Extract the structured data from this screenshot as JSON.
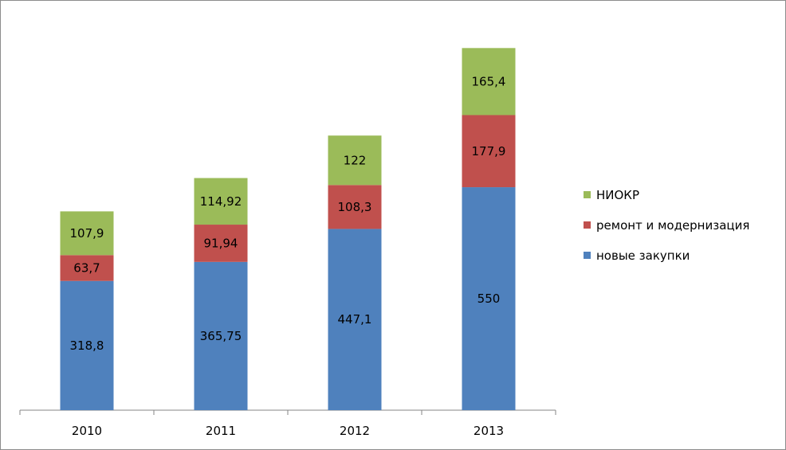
{
  "chart_data": {
    "type": "bar",
    "stacked": true,
    "categories": [
      "2010",
      "2011",
      "2012",
      "2013"
    ],
    "series": [
      {
        "name": "новые закупки",
        "values": [
          318.8,
          365.75,
          447.1,
          550
        ],
        "labels": [
          "318,8",
          "365,75",
          "447,1",
          "550"
        ],
        "color": "#4f81bd"
      },
      {
        "name": "ремонт и модернизация",
        "values": [
          63.7,
          91.94,
          108.3,
          177.9
        ],
        "labels": [
          "63,7",
          "91,94",
          "108,3",
          "177,9"
        ],
        "color": "#c0504d"
      },
      {
        "name": "НИОКР",
        "values": [
          107.9,
          114.92,
          122,
          165.4
        ],
        "labels": [
          "107,9",
          "114,92",
          "122",
          "165,4"
        ],
        "color": "#9bbb59"
      }
    ],
    "title": "",
    "xlabel": "",
    "ylabel": "",
    "ylim": [
      0,
      1000
    ],
    "grid": false,
    "legend_position": "right",
    "legend_order": [
      "НИОКР",
      "ремонт и модернизация",
      "новые закупки"
    ]
  }
}
